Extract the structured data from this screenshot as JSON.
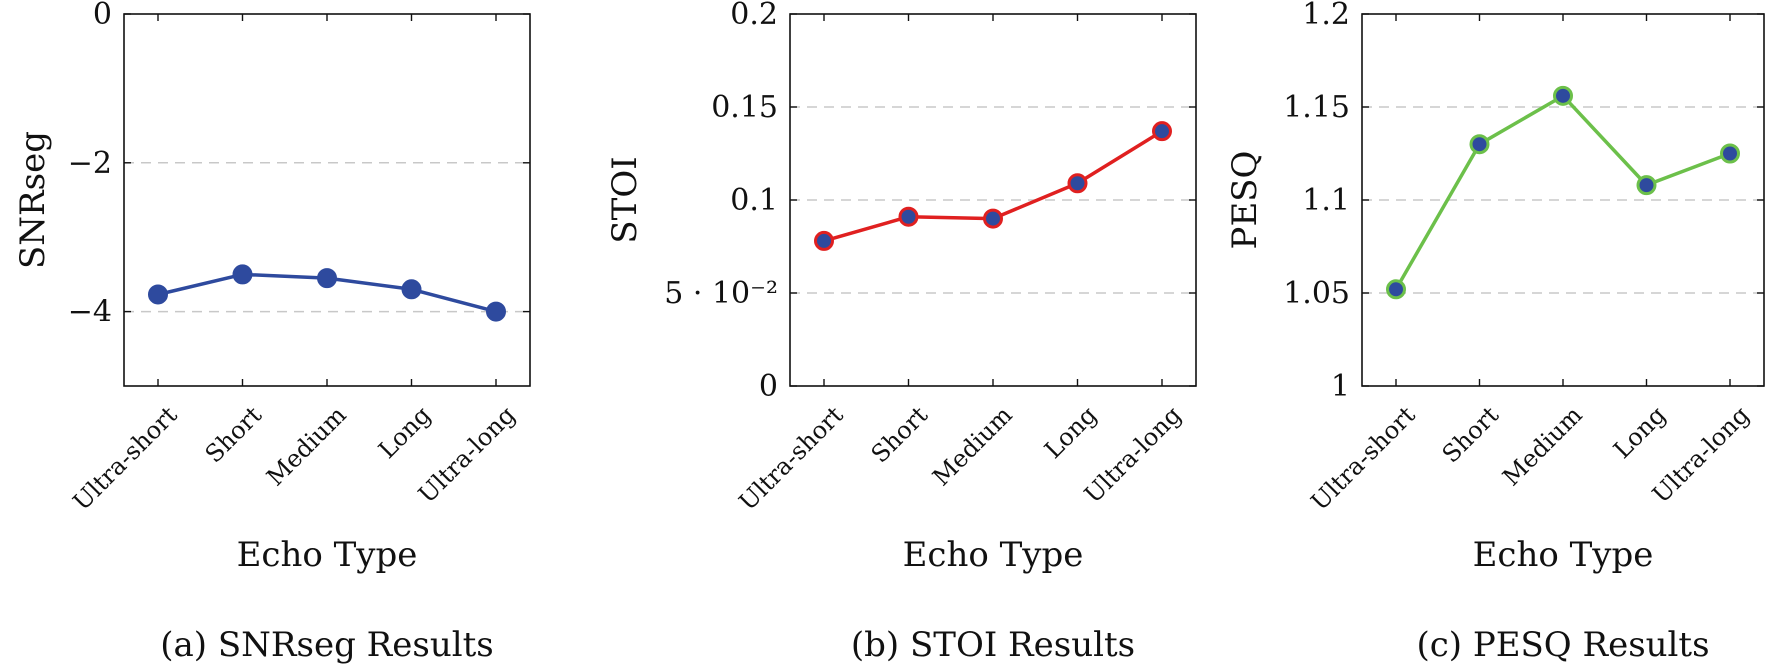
{
  "chart_data": [
    {
      "type": "line",
      "categories": [
        "Ultra-short",
        "Short",
        "Medium",
        "Long",
        "Ultra-long"
      ],
      "values": [
        -3.77,
        -3.5,
        -3.55,
        -3.7,
        -4.0
      ],
      "ylabel": "SNRseg",
      "xlabel": "Echo Type",
      "caption": "(a) SNRseg Results",
      "ylim": [
        -5,
        0
      ],
      "yticks": [
        -4,
        -2,
        0
      ],
      "ytick_labels": [
        "−4",
        "−2",
        "0"
      ],
      "grid": "horizontal dashed",
      "line_color": "#2e4a9e",
      "marker_fill": "#2e4a9e",
      "marker_edge": "#2e4a9e"
    },
    {
      "type": "line",
      "categories": [
        "Ultra-short",
        "Short",
        "Medium",
        "Long",
        "Ultra-long"
      ],
      "values": [
        0.078,
        0.091,
        0.09,
        0.109,
        0.137
      ],
      "ylabel": "STOI",
      "xlabel": "Echo Type",
      "caption": "(b) STOI Results",
      "ylim": [
        0,
        0.2
      ],
      "yticks": [
        0,
        0.05,
        0.1,
        0.15,
        0.2
      ],
      "ytick_labels": [
        "0",
        "5 · 10⁻²",
        "0.1",
        "0.15",
        "0.2"
      ],
      "grid": "horizontal dashed",
      "line_color": "#e02020",
      "marker_fill": "#2e4a9e",
      "marker_edge": "#e02020"
    },
    {
      "type": "line",
      "categories": [
        "Ultra-short",
        "Short",
        "Medium",
        "Long",
        "Ultra-long"
      ],
      "values": [
        1.052,
        1.13,
        1.156,
        1.108,
        1.125
      ],
      "ylabel": "PESQ",
      "xlabel": "Echo Type",
      "caption": "(c) PESQ Results",
      "ylim": [
        1,
        1.2
      ],
      "yticks": [
        1,
        1.05,
        1.1,
        1.15,
        1.2
      ],
      "ytick_labels": [
        "1",
        "1.05",
        "1.1",
        "1.15",
        "1.2"
      ],
      "grid": "horizontal dashed",
      "line_color": "#6cc04a",
      "marker_fill": "#2e4a9e",
      "marker_edge": "#6cc04a"
    }
  ]
}
